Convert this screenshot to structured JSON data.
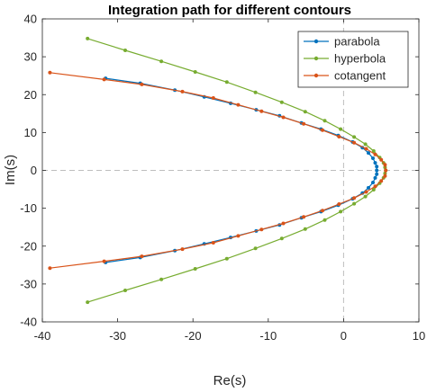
{
  "chart_data": {
    "type": "line",
    "title": "Integration path for different contours",
    "xlabel": "Re(s)",
    "ylabel": "Im(s)",
    "xlim": [
      -40,
      10
    ],
    "ylim": [
      -40,
      40
    ],
    "xticks": [
      -40,
      -30,
      -20,
      -10,
      0,
      10
    ],
    "yticks": [
      -40,
      -30,
      -20,
      -10,
      0,
      10,
      20,
      30,
      40
    ],
    "grid": false,
    "reference_lines": {
      "x": 0,
      "y": 0,
      "style": "dashed",
      "color": "#bdbdbd"
    },
    "legend": {
      "placement": "top-right",
      "entries": [
        "parabola",
        "hyperbola",
        "cotangent"
      ]
    },
    "series": [
      {
        "name": "parabola",
        "color": "#0072BD",
        "marker": "dot",
        "points": [
          [
            -31.6,
            -24.3
          ],
          [
            -27.0,
            -23.0
          ],
          [
            -22.4,
            -21.2
          ],
          [
            -18.5,
            -19.4
          ],
          [
            -15.0,
            -17.7
          ],
          [
            -11.6,
            -16.0
          ],
          [
            -8.5,
            -14.4
          ],
          [
            -5.6,
            -12.5
          ],
          [
            -3.0,
            -10.9
          ],
          [
            -0.7,
            -9.2
          ],
          [
            1.2,
            -7.5
          ],
          [
            2.5,
            -6.0
          ],
          [
            3.3,
            -4.6
          ],
          [
            3.9,
            -3.2
          ],
          [
            4.2,
            -2.0
          ],
          [
            4.4,
            -1.0
          ],
          [
            4.4,
            0.0
          ],
          [
            4.4,
            1.0
          ],
          [
            4.2,
            2.0
          ],
          [
            3.9,
            3.2
          ],
          [
            3.3,
            4.6
          ],
          [
            2.5,
            6.0
          ],
          [
            1.2,
            7.5
          ],
          [
            -0.7,
            9.2
          ],
          [
            -3.0,
            10.9
          ],
          [
            -5.6,
            12.5
          ],
          [
            -8.5,
            14.4
          ],
          [
            -11.6,
            16.0
          ],
          [
            -15.0,
            17.7
          ],
          [
            -18.5,
            19.4
          ],
          [
            -22.4,
            21.2
          ],
          [
            -27.0,
            23.0
          ],
          [
            -31.6,
            24.3
          ]
        ]
      },
      {
        "name": "hyperbola",
        "color": "#77AC30",
        "marker": "dot",
        "points": [
          [
            -34.0,
            -34.8
          ],
          [
            -29.0,
            -31.7
          ],
          [
            -24.2,
            -28.8
          ],
          [
            -19.7,
            -26.0
          ],
          [
            -15.5,
            -23.3
          ],
          [
            -11.7,
            -20.6
          ],
          [
            -8.2,
            -18.0
          ],
          [
            -5.1,
            -15.5
          ],
          [
            -2.5,
            -13.1
          ],
          [
            -0.4,
            -10.9
          ],
          [
            1.4,
            -8.8
          ],
          [
            2.9,
            -6.9
          ],
          [
            4.0,
            -5.1
          ],
          [
            4.8,
            -3.4
          ],
          [
            5.3,
            -2.0
          ],
          [
            5.5,
            -0.8
          ],
          [
            5.6,
            0.0
          ],
          [
            5.5,
            0.8
          ],
          [
            5.3,
            2.0
          ],
          [
            4.8,
            3.4
          ],
          [
            4.0,
            5.1
          ],
          [
            2.9,
            6.9
          ],
          [
            1.4,
            8.8
          ],
          [
            -0.4,
            10.9
          ],
          [
            -2.5,
            13.1
          ],
          [
            -5.1,
            15.5
          ],
          [
            -8.2,
            18.0
          ],
          [
            -11.7,
            20.6
          ],
          [
            -15.5,
            23.3
          ],
          [
            -19.7,
            26.0
          ],
          [
            -24.2,
            28.8
          ],
          [
            -29.0,
            31.7
          ],
          [
            -34.0,
            34.8
          ]
        ]
      },
      {
        "name": "cotangent",
        "color": "#D95319",
        "marker": "dot",
        "points": [
          [
            -39.0,
            -25.8
          ],
          [
            -31.8,
            -24.0
          ],
          [
            -26.8,
            -22.7
          ],
          [
            -21.4,
            -20.8
          ],
          [
            -17.3,
            -19.1
          ],
          [
            -14.0,
            -17.3
          ],
          [
            -10.9,
            -15.6
          ],
          [
            -8.0,
            -14.0
          ],
          [
            -5.3,
            -12.3
          ],
          [
            -2.8,
            -10.6
          ],
          [
            -0.6,
            -8.9
          ],
          [
            1.4,
            -7.3
          ],
          [
            3.0,
            -5.7
          ],
          [
            4.2,
            -4.2
          ],
          [
            5.0,
            -2.8
          ],
          [
            5.5,
            -1.5
          ],
          [
            5.6,
            0.0
          ],
          [
            5.5,
            1.5
          ],
          [
            5.0,
            2.8
          ],
          [
            4.2,
            4.2
          ],
          [
            3.0,
            5.7
          ],
          [
            1.4,
            7.3
          ],
          [
            -0.6,
            8.9
          ],
          [
            -2.8,
            10.6
          ],
          [
            -5.3,
            12.3
          ],
          [
            -8.0,
            14.0
          ],
          [
            -10.9,
            15.6
          ],
          [
            -14.0,
            17.3
          ],
          [
            -17.3,
            19.1
          ],
          [
            -21.4,
            20.8
          ],
          [
            -26.8,
            22.7
          ],
          [
            -31.8,
            24.0
          ],
          [
            -39.0,
            25.8
          ]
        ]
      }
    ]
  }
}
